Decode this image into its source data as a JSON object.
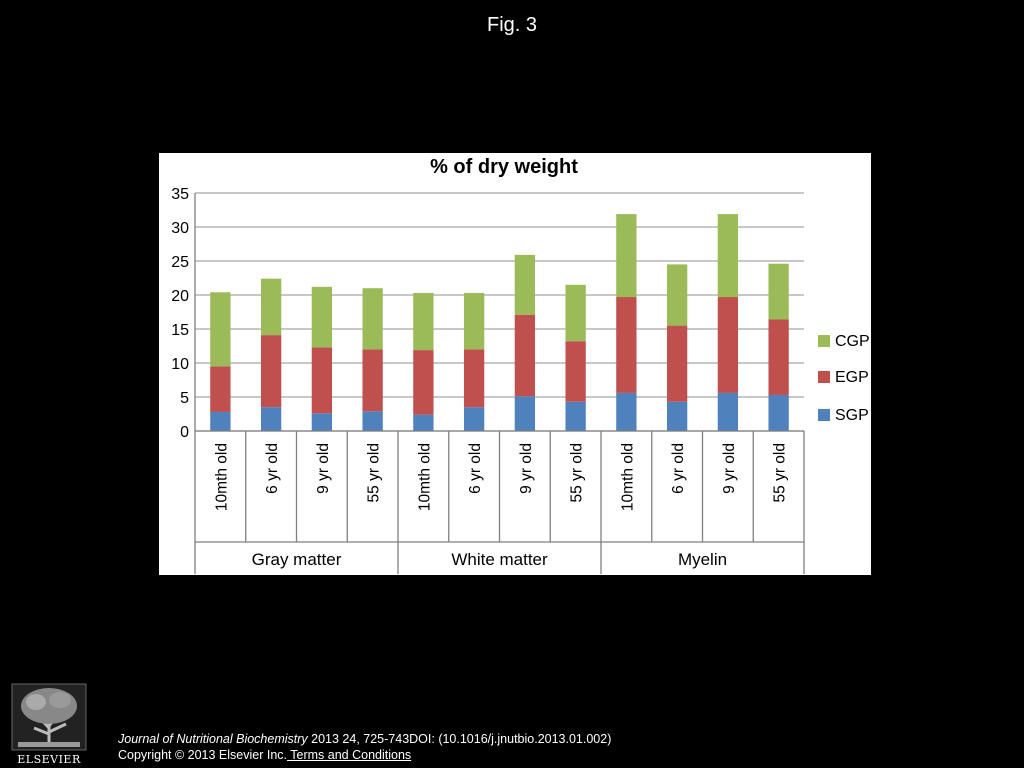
{
  "figure": {
    "label": "Fig. 3"
  },
  "citation": {
    "journal": "Journal of Nutritional Biochemistry",
    "details": " 2013 24, 725-743DOI: (10.1016/j.jnutbio.2013.01.002)",
    "copyright": "Copyright © 2013 Elsevier Inc.",
    "terms_link": " Terms and Conditions"
  },
  "logo": {
    "text": "ELSEVIER"
  },
  "chart_data": {
    "type": "bar",
    "stacked": true,
    "title": "% of dry weight",
    "xlabel": "",
    "ylabel": "",
    "ylim": [
      0,
      35
    ],
    "yticks": [
      0,
      5,
      10,
      15,
      20,
      25,
      30,
      35
    ],
    "grid": true,
    "legend_position": "right",
    "groups": [
      {
        "label": "Gray matter",
        "categories": [
          "10mth old",
          "6 yr old",
          "9 yr old",
          "55 yr old"
        ]
      },
      {
        "label": "White matter",
        "categories": [
          "10mth old",
          "6 yr old",
          "9 yr old",
          "55 yr old"
        ]
      },
      {
        "label": "Myelin",
        "categories": [
          "10mth old",
          "6 yr old",
          "9 yr old",
          "55 yr old"
        ]
      }
    ],
    "series": [
      {
        "name": "SGP",
        "color": "#4F81BD",
        "values": [
          2.8,
          3.5,
          2.6,
          2.9,
          2.4,
          3.5,
          5.1,
          4.3,
          5.6,
          4.3,
          5.6,
          5.3
        ]
      },
      {
        "name": "EGP",
        "color": "#C0504D",
        "values": [
          6.7,
          10.6,
          9.7,
          9.1,
          9.5,
          8.5,
          12.0,
          8.9,
          14.1,
          11.2,
          14.1,
          11.1
        ]
      },
      {
        "name": "CGP",
        "color": "#9BBB59",
        "values": [
          10.9,
          8.3,
          8.9,
          9.0,
          8.4,
          8.3,
          8.8,
          8.3,
          12.2,
          9.0,
          12.2,
          8.2
        ]
      }
    ]
  }
}
